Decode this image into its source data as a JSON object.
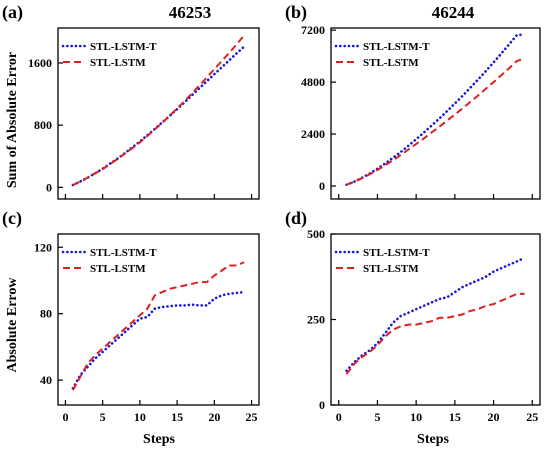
{
  "figure": {
    "ylabel_top": "Sum of Absolute Error",
    "ylabel_bottom": "Absolute Errow",
    "xlabel": "Steps"
  },
  "chart_data": [
    {
      "type": "line",
      "panel": "(a)",
      "title": "46253",
      "xlim": [
        -1,
        26
      ],
      "ylim": [
        -150,
        2050
      ],
      "xticks": [],
      "yticks": [
        0,
        800,
        1600
      ],
      "legend": "top-left",
      "series": [
        {
          "name": "STL-LSTM-T",
          "color": "#1a1ad6",
          "style": "dotted",
          "x": [
            1,
            2,
            3,
            4,
            5,
            6,
            7,
            8,
            9,
            10,
            11,
            12,
            13,
            14,
            15,
            16,
            17,
            18,
            19,
            20,
            21,
            22,
            23,
            24
          ],
          "y": [
            30,
            75,
            125,
            180,
            240,
            305,
            370,
            440,
            515,
            590,
            670,
            750,
            835,
            920,
            1005,
            1095,
            1185,
            1275,
            1365,
            1455,
            1545,
            1635,
            1725,
            1810
          ]
        },
        {
          "name": "STL-LSTM",
          "color": "#e02020",
          "style": "dashed",
          "x": [
            1,
            2,
            3,
            4,
            5,
            6,
            7,
            8,
            9,
            10,
            11,
            12,
            13,
            14,
            15,
            16,
            17,
            18,
            19,
            20,
            21,
            22,
            23,
            24
          ],
          "y": [
            30,
            75,
            125,
            180,
            235,
            300,
            365,
            435,
            505,
            580,
            660,
            745,
            830,
            920,
            1015,
            1110,
            1210,
            1310,
            1415,
            1520,
            1625,
            1730,
            1840,
            1955
          ]
        }
      ]
    },
    {
      "type": "line",
      "panel": "(b)",
      "title": "46244",
      "xlim": [
        -1,
        26
      ],
      "ylim": [
        -600,
        7300
      ],
      "xticks": [],
      "yticks": [
        0,
        2400,
        4800,
        7200
      ],
      "legend": "top-left",
      "series": [
        {
          "name": "STL-LSTM-T",
          "color": "#1a1ad6",
          "style": "dotted",
          "x": [
            1,
            2,
            3,
            4,
            5,
            6,
            7,
            8,
            9,
            10,
            11,
            12,
            13,
            14,
            15,
            16,
            17,
            18,
            19,
            20,
            21,
            22,
            23,
            24
          ],
          "y": [
            60,
            200,
            380,
            580,
            800,
            1040,
            1300,
            1570,
            1860,
            2160,
            2470,
            2790,
            3120,
            3460,
            3810,
            4170,
            4540,
            4920,
            5310,
            5710,
            6120,
            6540,
            6970,
            7000
          ]
        },
        {
          "name": "STL-LSTM",
          "color": "#e02020",
          "style": "dashed",
          "x": [
            1,
            2,
            3,
            4,
            5,
            6,
            7,
            8,
            9,
            10,
            11,
            12,
            13,
            14,
            15,
            16,
            17,
            18,
            19,
            20,
            21,
            22,
            23,
            24
          ],
          "y": [
            60,
            190,
            360,
            540,
            740,
            960,
            1190,
            1430,
            1680,
            1940,
            2200,
            2470,
            2740,
            3020,
            3300,
            3590,
            3880,
            4180,
            4490,
            4800,
            5120,
            5440,
            5770,
            5900
          ]
        }
      ]
    },
    {
      "type": "line",
      "panel": "(c)",
      "title": "",
      "xlim": [
        -1,
        26
      ],
      "ylim": [
        25,
        128
      ],
      "xticks": [
        0,
        5,
        10,
        15,
        20,
        25
      ],
      "yticks": [
        40,
        80,
        120
      ],
      "legend": "top-left",
      "series": [
        {
          "name": "STL-LSTM-T",
          "color": "#1a1ad6",
          "style": "dotted",
          "x": [
            1,
            2,
            3,
            4,
            5,
            6,
            7,
            8,
            9,
            10,
            11,
            12,
            13,
            14,
            15,
            16,
            17,
            18,
            19,
            20,
            21,
            22,
            23,
            24
          ],
          "y": [
            35,
            43,
            48,
            53,
            57,
            61,
            65,
            69,
            73,
            77,
            78,
            83,
            84,
            84.5,
            85,
            85,
            85.5,
            85,
            85,
            89,
            91,
            92,
            92.5,
            93
          ]
        },
        {
          "name": "STL-LSTM",
          "color": "#e02020",
          "style": "dashed",
          "x": [
            1,
            2,
            3,
            4,
            5,
            6,
            7,
            8,
            9,
            10,
            11,
            12,
            13,
            14,
            15,
            16,
            17,
            18,
            19,
            20,
            21,
            22,
            23,
            24
          ],
          "y": [
            34,
            42,
            50,
            55,
            59,
            63,
            67,
            71,
            75,
            79,
            83,
            91,
            93,
            95,
            96,
            97,
            98,
            99,
            99,
            103,
            106,
            109,
            109,
            111
          ]
        }
      ]
    },
    {
      "type": "line",
      "panel": "(d)",
      "title": "",
      "xlim": [
        -1,
        26
      ],
      "ylim": [
        0,
        500
      ],
      "xticks": [
        0,
        5,
        10,
        15,
        20,
        25
      ],
      "yticks": [
        0,
        250,
        500
      ],
      "legend": "top-left",
      "series": [
        {
          "name": "STL-LSTM-T",
          "color": "#1a1ad6",
          "style": "dotted",
          "x": [
            1,
            2,
            3,
            4,
            5,
            6,
            7,
            8,
            9,
            10,
            11,
            12,
            13,
            14,
            15,
            16,
            17,
            18,
            19,
            20,
            21,
            22,
            23,
            24
          ],
          "y": [
            100,
            125,
            145,
            160,
            180,
            210,
            240,
            260,
            270,
            280,
            290,
            300,
            310,
            315,
            330,
            345,
            355,
            365,
            375,
            390,
            400,
            410,
            420,
            430
          ]
        },
        {
          "name": "STL-LSTM",
          "color": "#e02020",
          "style": "dashed",
          "x": [
            1,
            2,
            3,
            4,
            5,
            6,
            7,
            8,
            9,
            10,
            11,
            12,
            13,
            14,
            15,
            16,
            17,
            18,
            19,
            20,
            21,
            22,
            23,
            24
          ],
          "y": [
            90,
            120,
            140,
            155,
            175,
            200,
            220,
            230,
            235,
            235,
            240,
            245,
            255,
            255,
            260,
            265,
            275,
            280,
            290,
            295,
            305,
            315,
            325,
            325
          ]
        }
      ]
    }
  ]
}
